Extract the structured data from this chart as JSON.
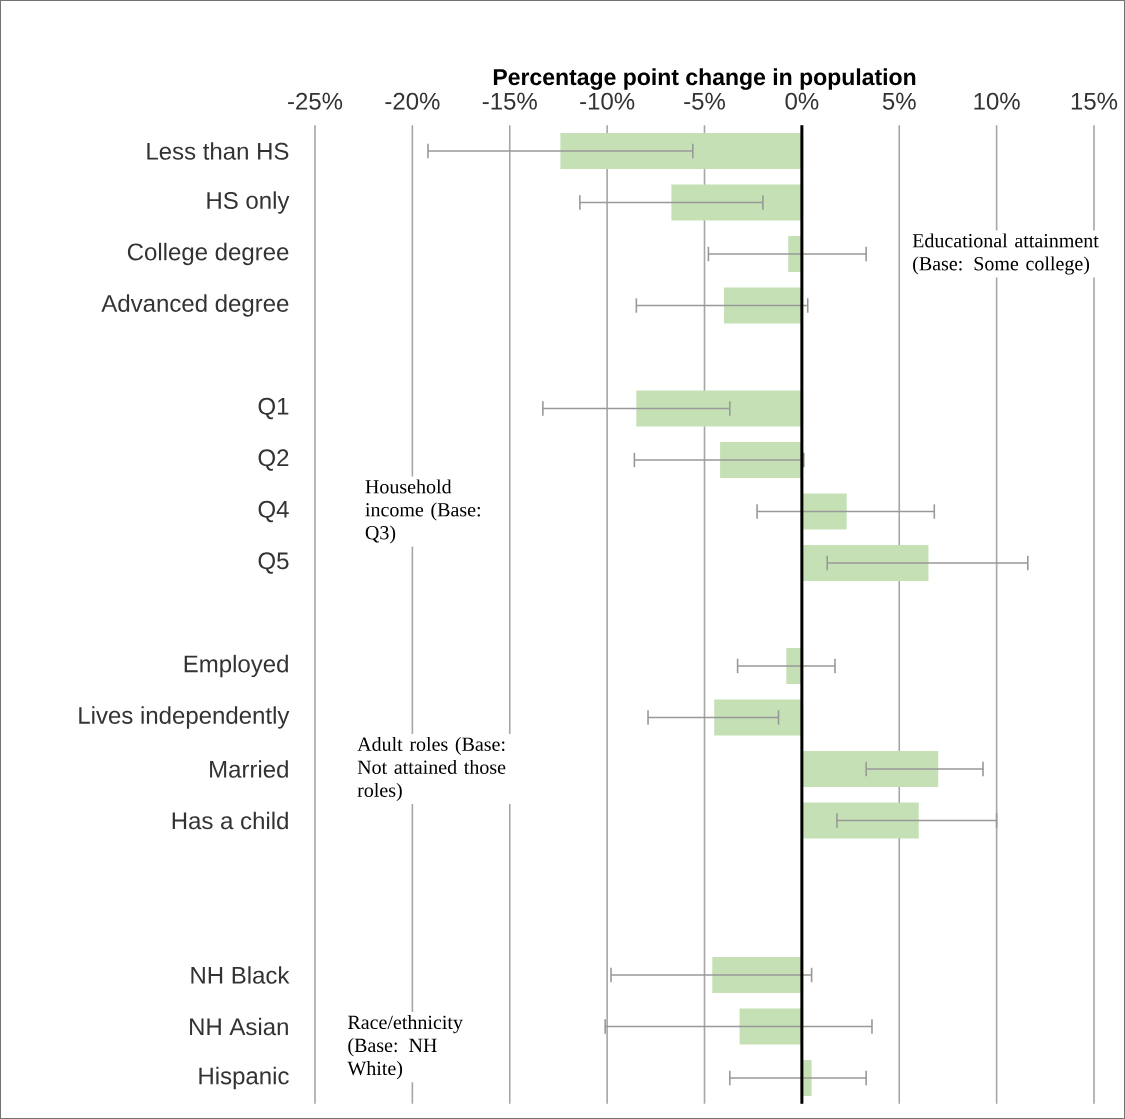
{
  "chart_data": {
    "type": "bar",
    "orientation": "horizontal",
    "xlabel": "Percentage point change in population",
    "categories": [
      "Less than HS",
      "HS only",
      "College degree",
      "Advanced degree",
      null,
      "Q1",
      "Q2",
      "Q4",
      "Q5",
      null,
      "Employed",
      "Lives independently",
      "Married",
      "Has a child",
      null,
      null,
      "NH Black",
      "NH Asian",
      "Hispanic"
    ],
    "values": [
      -12.4,
      -6.7,
      -0.7,
      -4.0,
      null,
      -8.5,
      -4.2,
      2.3,
      6.5,
      null,
      -0.8,
      -4.5,
      7.0,
      6.0,
      null,
      null,
      -4.6,
      -3.2,
      0.5
    ],
    "errors": [
      [
        -19.2,
        -5.6
      ],
      [
        -11.4,
        -2.0
      ],
      [
        -4.8,
        3.3
      ],
      [
        -8.5,
        0.3
      ],
      null,
      [
        -13.3,
        -3.7
      ],
      [
        -8.6,
        0.1
      ],
      [
        -2.3,
        6.8
      ],
      [
        1.3,
        11.6
      ],
      null,
      [
        -3.3,
        1.7
      ],
      [
        -7.9,
        -1.2
      ],
      [
        3.3,
        9.3
      ],
      [
        1.8,
        10.0
      ],
      null,
      null,
      [
        -9.8,
        0.5
      ],
      [
        -10.1,
        3.6
      ],
      [
        -3.7,
        3.3
      ]
    ],
    "color": "#c5e0b4",
    "xlim": [
      -25,
      15
    ],
    "xticks": [
      {
        "value": -25,
        "label": "-25%"
      },
      {
        "value": -20,
        "label": "-20%"
      },
      {
        "value": -15,
        "label": "-15%"
      },
      {
        "value": -10,
        "label": "-10%"
      },
      {
        "value": -5,
        "label": "-5%"
      },
      {
        "value": 0,
        "label": "0%"
      },
      {
        "value": 5,
        "label": "5%"
      },
      {
        "value": 10,
        "label": "10%"
      },
      {
        "value": 15,
        "label": "15%"
      }
    ],
    "grid": "x",
    "ref_lines": [
      {
        "axis": "x",
        "value": 0,
        "color": "#000000"
      }
    ],
    "annotations": [
      "Educational attainment (Base: Some college)",
      "Household income (Base: Q3)",
      "Adult roles (Base: Not attained those roles)",
      "Race/ethnicity (Base: NH White)"
    ]
  }
}
